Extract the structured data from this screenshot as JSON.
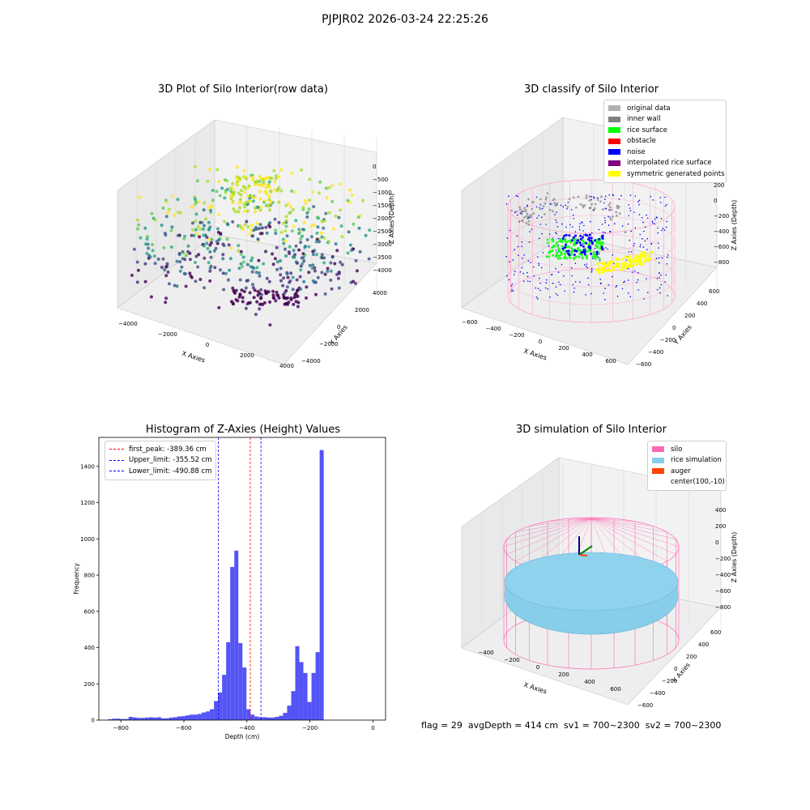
{
  "figure": {
    "suptitle": "PJPJR02 2026-03-24 22:25:26",
    "footer": "flag = 29  avgDepth = 414 cm  sv1 = 700~2300  sv2 = 700~2300"
  },
  "colors": {
    "hist_bar": "#4b4bf5",
    "peak_line": "#ff0000",
    "limit_line": "#0000ff",
    "pane": "#f2f2f2",
    "grid": "#d8d8d8",
    "silo": "#ff69b4",
    "rice": "#87ceeb"
  },
  "chart_data": [
    {
      "type": "scatter",
      "title": "3D Plot of Silo Interior(row data)",
      "projection": "3d",
      "xlabel": "X Axies",
      "ylabel": "Y Axies",
      "zlabel": "Z Axies (Depth)",
      "x_ticks": [
        "-4000",
        "-2000",
        "0",
        "2000",
        "4000"
      ],
      "y_ticks": [
        "-4000",
        "-2000",
        "0",
        "2000",
        "4000"
      ],
      "z_ticks": [
        "0",
        "-500",
        "-1000",
        "-1500",
        "-2000",
        "-2500",
        "-3000",
        "-3500",
        "-4000"
      ],
      "colormap": "viridis"
    },
    {
      "type": "scatter",
      "title": "3D classify of Silo Interior",
      "projection": "3d",
      "xlabel": "X Axies",
      "ylabel": "Y Axies",
      "zlabel": "Z Axies (Depth)",
      "x_ticks": [
        "-600",
        "-400",
        "-200",
        "0",
        "200",
        "400",
        "600"
      ],
      "y_ticks": [
        "-600",
        "-400",
        "-200",
        "0",
        "200",
        "400",
        "600"
      ],
      "z_ticks": [
        "200",
        "0",
        "-200",
        "-400",
        "-600",
        "-800"
      ],
      "legend_position": "top-right",
      "legend": [
        {
          "label": "original data",
          "color": "#b0b0b0"
        },
        {
          "label": "inner wall",
          "color": "#808080"
        },
        {
          "label": "rice surface",
          "color": "#00ff00"
        },
        {
          "label": "obstacle",
          "color": "#ff0000"
        },
        {
          "label": "noise",
          "color": "#0000ff"
        },
        {
          "label": "interpolated rice surface",
          "color": "#800080"
        },
        {
          "label": "symmetric generated points",
          "color": "#ffff00"
        }
      ]
    },
    {
      "type": "bar",
      "title": "Histogram of Z-Axies (Height) Values",
      "xlabel": "Depth (cm)",
      "ylabel": "Frequency",
      "xlim": [
        -870,
        40
      ],
      "ylim": [
        0,
        1560
      ],
      "x_ticks": [
        -800,
        -600,
        -400,
        -200,
        0
      ],
      "y_ticks": [
        0,
        200,
        400,
        600,
        800,
        1000,
        1200,
        1400
      ],
      "bin_width": 12.9,
      "bins_start": -840,
      "values": [
        5,
        8,
        8,
        6,
        6,
        18,
        15,
        12,
        12,
        14,
        16,
        14,
        16,
        10,
        10,
        14,
        16,
        20,
        22,
        26,
        30,
        30,
        34,
        42,
        48,
        60,
        105,
        152,
        250,
        430,
        845,
        935,
        425,
        290,
        60,
        30,
        20,
        16,
        16,
        14,
        14,
        18,
        24,
        40,
        80,
        160,
        408,
        320,
        260,
        100,
        260,
        375,
        1490
      ],
      "markers": [
        {
          "label": "first_peak: -389.36 cm",
          "value": -389.36,
          "style": "red dashed"
        },
        {
          "label": "Upper_limit: -355.52 cm",
          "value": -355.52,
          "style": "blue dashed"
        },
        {
          "label": "Lower_limit: -490.88 cm",
          "value": -490.88,
          "style": "blue dashed"
        }
      ],
      "legend_position": "top-left"
    },
    {
      "type": "scatter",
      "title": "3D simulation of Silo Interior",
      "projection": "3d",
      "xlabel": "X Axies",
      "ylabel": "Y Axies",
      "zlabel": "Z Axies (Depth)",
      "x_ticks": [
        "-400",
        "-200",
        "0",
        "200",
        "400",
        "600"
      ],
      "y_ticks": [
        "-600",
        "-400",
        "-200",
        "0",
        "200",
        "400",
        "600"
      ],
      "z_ticks": [
        "400",
        "200",
        "0",
        "-200",
        "-400",
        "-600",
        "-800"
      ],
      "legend_position": "top-right",
      "legend": [
        {
          "label": "silo",
          "color": "#ff69b4"
        },
        {
          "label": "rice simulation",
          "color": "#87ceeb"
        },
        {
          "label": "auger",
          "color": "#ff4500"
        },
        {
          "label": "center(100,-10)",
          "color": ""
        }
      ]
    }
  ]
}
